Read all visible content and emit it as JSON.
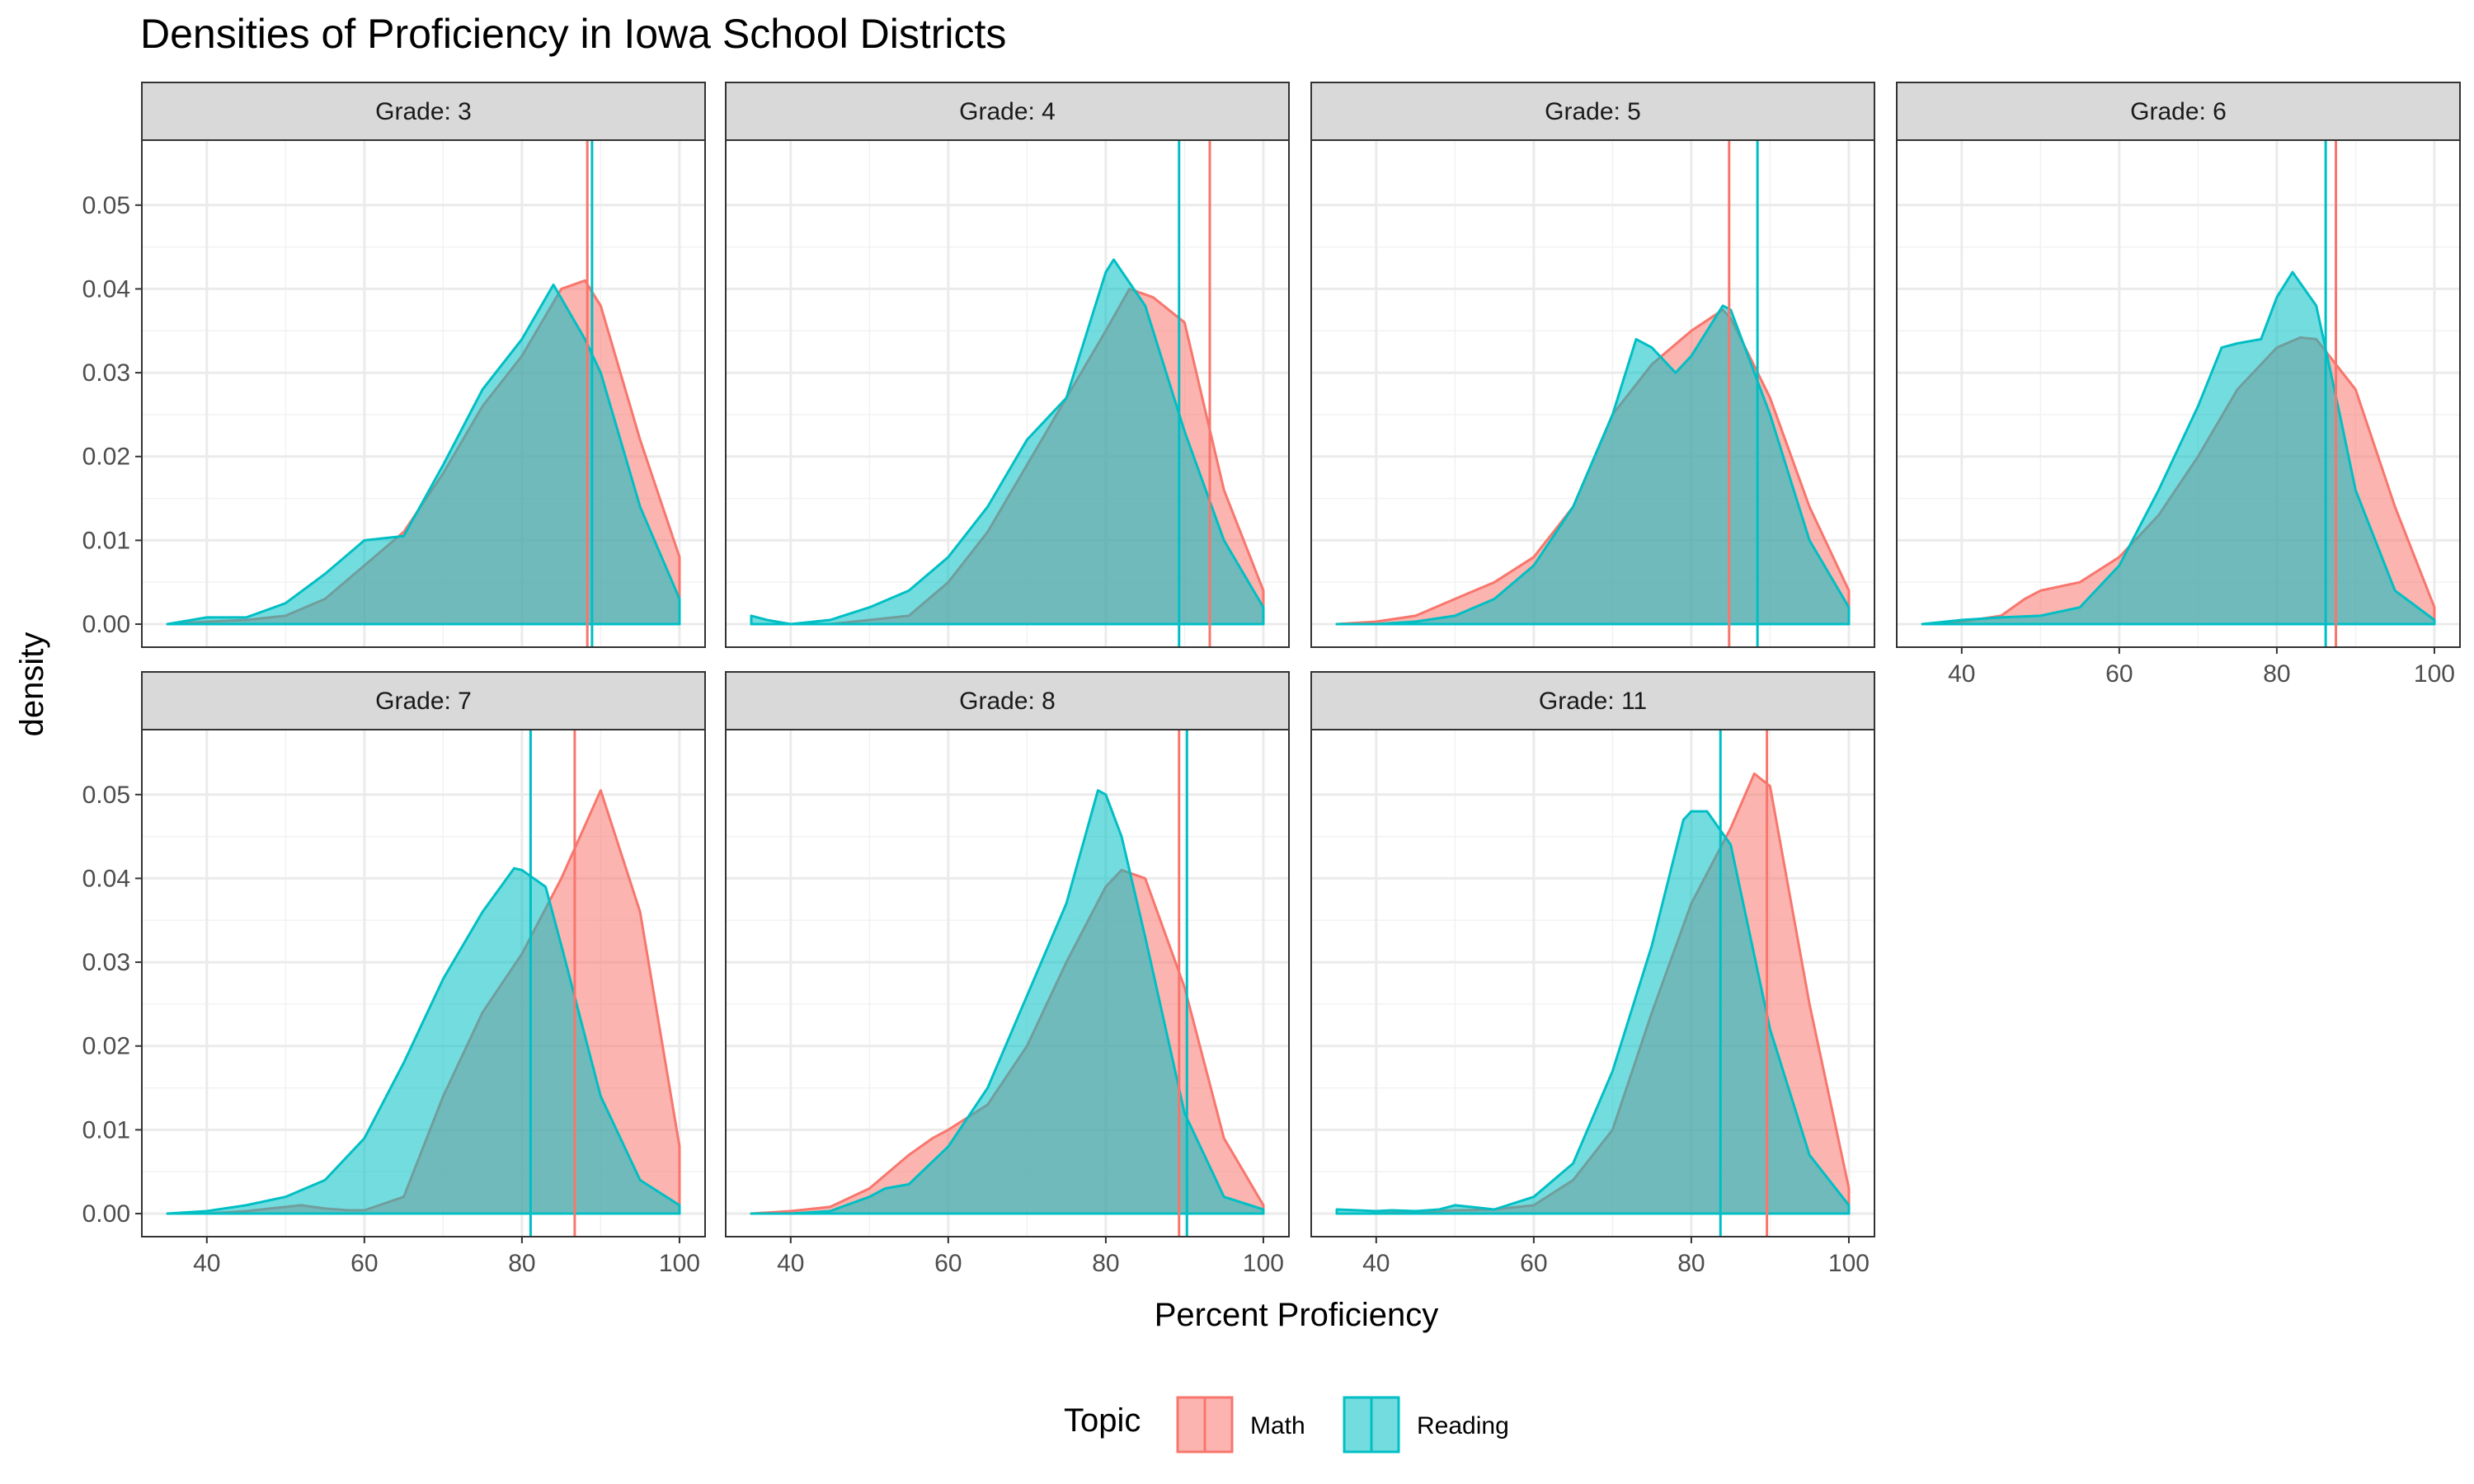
{
  "chart_data": {
    "type": "area",
    "title": "Densities of Proficiency in Iowa School Districts",
    "xlabel": "Percent Proficiency",
    "ylabel": "density",
    "xlim": [
      35,
      100
    ],
    "ylim": [
      0,
      0.055
    ],
    "x_ticks": [
      40,
      60,
      80,
      100
    ],
    "y_ticks": [
      0.0,
      0.01,
      0.02,
      0.03,
      0.04,
      0.05
    ],
    "y_tick_labels": [
      "0.00",
      "0.01",
      "0.02",
      "0.03",
      "0.04",
      "0.05"
    ],
    "grid": true,
    "legend": {
      "title": "Topic",
      "position": "bottom",
      "entries": [
        {
          "name": "Math",
          "color": "#F8766D"
        },
        {
          "name": "Reading",
          "color": "#00BFC4"
        }
      ]
    },
    "series_colors": {
      "Math": "#F8766D",
      "Reading": "#00BFC4"
    },
    "panels": [
      {
        "label": "Grade: 3",
        "means": {
          "Math": 88.3,
          "Reading": 88.9
        },
        "series": [
          {
            "name": "Math",
            "x": [
              35,
              40,
              45,
              50,
              55,
              60,
              65,
              70,
              75,
              80,
              85,
              88,
              90,
              95,
              100
            ],
            "y": [
              0,
              0.0003,
              0.0005,
              0.001,
              0.003,
              0.007,
              0.011,
              0.018,
              0.026,
              0.032,
              0.04,
              0.041,
              0.038,
              0.022,
              0.008
            ]
          },
          {
            "name": "Reading",
            "x": [
              35,
              40,
              45,
              50,
              55,
              60,
              65,
              70,
              75,
              80,
              84,
              88,
              90,
              95,
              100
            ],
            "y": [
              0,
              0.0008,
              0.0008,
              0.0025,
              0.006,
              0.01,
              0.0105,
              0.019,
              0.028,
              0.034,
              0.0405,
              0.034,
              0.03,
              0.014,
              0.003
            ]
          }
        ]
      },
      {
        "label": "Grade: 4",
        "means": {
          "Math": 93.2,
          "Reading": 89.3
        },
        "series": [
          {
            "name": "Math",
            "x": [
              35,
              40,
              45,
              50,
              55,
              60,
              65,
              70,
              75,
              80,
              83,
              86,
              90,
              95,
              100
            ],
            "y": [
              0,
              0,
              0,
              0.0005,
              0.001,
              0.005,
              0.011,
              0.019,
              0.027,
              0.035,
              0.04,
              0.039,
              0.036,
              0.016,
              0.004
            ]
          },
          {
            "name": "Reading",
            "x": [
              35,
              37,
              40,
              45,
              50,
              55,
              60,
              65,
              70,
              75,
              80,
              81,
              85,
              90,
              95,
              100
            ],
            "y": [
              0.001,
              0.0005,
              0,
              0.0005,
              0.002,
              0.004,
              0.008,
              0.014,
              0.022,
              0.027,
              0.042,
              0.0435,
              0.038,
              0.023,
              0.01,
              0.002
            ]
          }
        ]
      },
      {
        "label": "Grade: 5",
        "means": {
          "Math": 84.8,
          "Reading": 88.4
        },
        "series": [
          {
            "name": "Math",
            "x": [
              35,
              40,
              45,
              50,
              55,
              60,
              65,
              70,
              75,
              80,
              84,
              85,
              90,
              95,
              100
            ],
            "y": [
              0,
              0.0003,
              0.001,
              0.003,
              0.005,
              0.008,
              0.014,
              0.025,
              0.031,
              0.035,
              0.0375,
              0.0365,
              0.027,
              0.014,
              0.004
            ]
          },
          {
            "name": "Reading",
            "x": [
              35,
              40,
              45,
              50,
              55,
              60,
              65,
              70,
              73,
              75,
              78,
              80,
              84,
              85,
              90,
              95,
              100
            ],
            "y": [
              0,
              0,
              0.0003,
              0.001,
              0.003,
              0.007,
              0.014,
              0.025,
              0.034,
              0.033,
              0.03,
              0.032,
              0.038,
              0.0375,
              0.025,
              0.01,
              0.002
            ]
          }
        ]
      },
      {
        "label": "Grade: 6",
        "means": {
          "Math": 87.5,
          "Reading": 86.2
        },
        "series": [
          {
            "name": "Math",
            "x": [
              35,
              40,
              45,
              48,
              50,
              55,
              60,
              65,
              70,
              75,
              80,
              83,
              85,
              90,
              95,
              100
            ],
            "y": [
              0,
              0.0003,
              0.001,
              0.003,
              0.004,
              0.005,
              0.008,
              0.013,
              0.02,
              0.028,
              0.033,
              0.0342,
              0.034,
              0.028,
              0.014,
              0.002
            ]
          },
          {
            "name": "Reading",
            "x": [
              35,
              40,
              45,
              50,
              55,
              60,
              65,
              70,
              73,
              75,
              78,
              80,
              82,
              85,
              88,
              90,
              95,
              100
            ],
            "y": [
              0,
              0.0005,
              0.0008,
              0.001,
              0.002,
              0.007,
              0.016,
              0.026,
              0.033,
              0.0335,
              0.034,
              0.039,
              0.042,
              0.038,
              0.025,
              0.016,
              0.004,
              0.0005
            ]
          }
        ]
      },
      {
        "label": "Grade: 7",
        "means": {
          "Math": 86.7,
          "Reading": 81.1
        },
        "series": [
          {
            "name": "Math",
            "x": [
              35,
              40,
              45,
              50,
              52,
              55,
              58,
              60,
              65,
              70,
              75,
              80,
              85,
              90,
              95,
              100
            ],
            "y": [
              0,
              0,
              0.0003,
              0.0008,
              0.001,
              0.0006,
              0.0004,
              0.0004,
              0.002,
              0.014,
              0.024,
              0.031,
              0.04,
              0.0505,
              0.036,
              0.008
            ]
          },
          {
            "name": "Reading",
            "x": [
              35,
              40,
              45,
              50,
              55,
              60,
              65,
              70,
              75,
              79,
              80,
              83,
              85,
              90,
              95,
              100
            ],
            "y": [
              0,
              0.0003,
              0.001,
              0.002,
              0.004,
              0.009,
              0.018,
              0.028,
              0.036,
              0.0412,
              0.041,
              0.039,
              0.032,
              0.014,
              0.004,
              0.001
            ]
          }
        ]
      },
      {
        "label": "Grade: 8",
        "means": {
          "Math": 89.3,
          "Reading": 90.3
        },
        "series": [
          {
            "name": "Math",
            "x": [
              35,
              40,
              45,
              50,
              55,
              58,
              60,
              65,
              70,
              75,
              80,
              82,
              85,
              90,
              95,
              100
            ],
            "y": [
              0,
              0.0003,
              0.0008,
              0.003,
              0.007,
              0.009,
              0.01,
              0.013,
              0.02,
              0.03,
              0.039,
              0.041,
              0.04,
              0.027,
              0.009,
              0.001
            ]
          },
          {
            "name": "Reading",
            "x": [
              35,
              40,
              45,
              50,
              52,
              55,
              60,
              65,
              70,
              75,
              79,
              80,
              82,
              85,
              90,
              95,
              100
            ],
            "y": [
              0,
              0,
              0.0003,
              0.002,
              0.003,
              0.0035,
              0.008,
              0.015,
              0.026,
              0.037,
              0.0505,
              0.05,
              0.045,
              0.033,
              0.012,
              0.002,
              0.0005
            ]
          }
        ]
      },
      {
        "label": "Grade: 11",
        "means": {
          "Math": 89.6,
          "Reading": 83.7
        },
        "series": [
          {
            "name": "Math",
            "x": [
              35,
              40,
              45,
              50,
              55,
              60,
              65,
              70,
              75,
              80,
              85,
              88,
              90,
              95,
              100
            ],
            "y": [
              0,
              0,
              0.0002,
              0.0004,
              0.0005,
              0.001,
              0.004,
              0.01,
              0.024,
              0.037,
              0.046,
              0.0525,
              0.051,
              0.025,
              0.003
            ]
          },
          {
            "name": "Reading",
            "x": [
              35,
              40,
              42,
              45,
              48,
              50,
              52,
              55,
              60,
              65,
              70,
              75,
              79,
              80,
              82,
              85,
              90,
              95,
              100
            ],
            "y": [
              0.0005,
              0.0003,
              0.0004,
              0.0003,
              0.0005,
              0.001,
              0.0008,
              0.0005,
              0.002,
              0.006,
              0.017,
              0.032,
              0.047,
              0.048,
              0.048,
              0.044,
              0.022,
              0.007,
              0.001
            ]
          }
        ]
      }
    ]
  }
}
